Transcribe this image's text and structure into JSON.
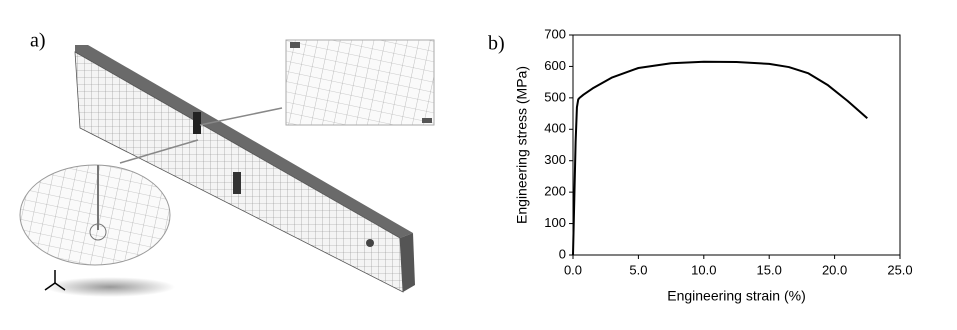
{
  "figure": {
    "panel_labels": [
      "a)",
      "b)"
    ]
  },
  "chart_data": {
    "type": "line",
    "xlabel": "Engineering strain (%)",
    "ylabel": "Engineering stress (MPa)",
    "x": [
      0,
      0.1,
      0.2,
      0.3,
      0.4,
      0.5,
      0.8,
      1.5,
      3,
      5,
      7.5,
      10,
      12.5,
      15,
      16.5,
      18,
      19.5,
      21,
      22.5
    ],
    "series": [
      {
        "color": "#000000",
        "values": [
          0,
          180,
          360,
          470,
          495,
          500,
          510,
          530,
          565,
          595,
          610,
          615,
          614,
          608,
          598,
          578,
          540,
          490,
          435
        ]
      }
    ],
    "xlim": [
      0,
      25
    ],
    "xticks": [
      {
        "value": 0,
        "label": "0.0"
      },
      {
        "value": 5,
        "label": "5.0"
      },
      {
        "value": 10,
        "label": "10.0"
      },
      {
        "value": 15,
        "label": "15.0"
      },
      {
        "value": 20,
        "label": "20.0"
      },
      {
        "value": 25,
        "label": "25.0"
      }
    ],
    "ylim": [
      0,
      700
    ],
    "yticks": [
      0,
      100,
      200,
      300,
      400,
      500,
      600,
      700
    ],
    "grid": false
  }
}
